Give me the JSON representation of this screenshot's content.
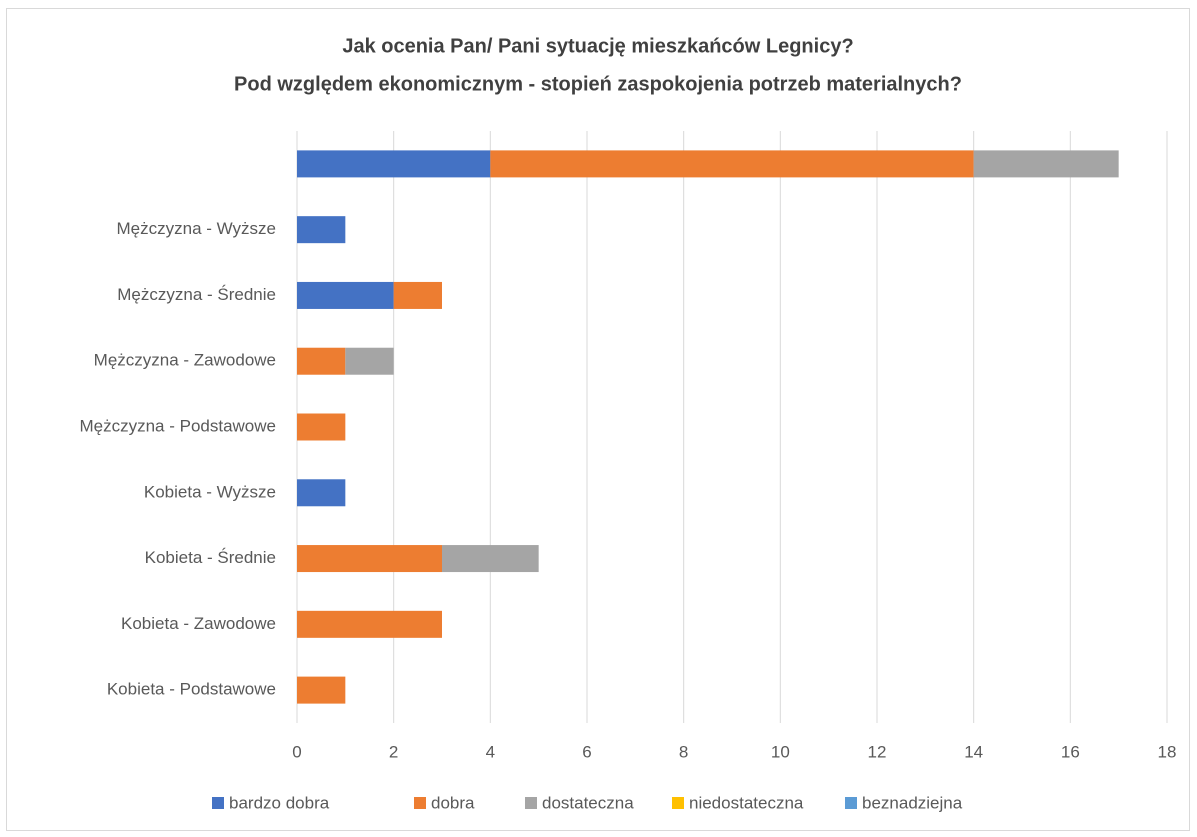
{
  "chart_data": {
    "type": "stacked-barh",
    "title": [
      "Jak ocenia Pan/ Pani sytuację mieszkańców Legnicy?",
      "Pod względem ekonomicznym - stopień zaspokojenia potrzeb materialnych?"
    ],
    "categories": [
      null,
      "Mężczyzna - Wyższe",
      "Mężczyzna - Średnie",
      "Mężczyzna - Zawodowe",
      "Mężczyzna - Podstawowe",
      "Kobieta - Wyższe",
      "Kobieta - Średnie",
      "Kobieta - Zawodowe",
      "Kobieta - Podstawowe"
    ],
    "series": [
      {
        "name": "bardzo dobra",
        "color": "#4472c4",
        "values": [
          4,
          1,
          2,
          0,
          0,
          1,
          0,
          0,
          0
        ]
      },
      {
        "name": "dobra",
        "color": "#ed7d31",
        "values": [
          10,
          0,
          1,
          1,
          1,
          0,
          3,
          3,
          1
        ]
      },
      {
        "name": "dostateczna",
        "color": "#a5a5a5",
        "values": [
          3,
          0,
          0,
          1,
          0,
          0,
          2,
          0,
          0
        ]
      },
      {
        "name": "niedostateczna",
        "color": "#ffc000",
        "values": [
          0,
          0,
          0,
          0,
          0,
          0,
          0,
          0,
          0
        ]
      },
      {
        "name": "beznadziejna",
        "color": "#5b9bd5",
        "values": [
          0,
          0,
          0,
          0,
          0,
          0,
          0,
          0,
          0
        ]
      }
    ],
    "xlim": [
      0,
      18
    ],
    "xticks": [
      0,
      2,
      4,
      6,
      8,
      10,
      12,
      14,
      16,
      18
    ],
    "grid": true,
    "legend": "bottom"
  }
}
